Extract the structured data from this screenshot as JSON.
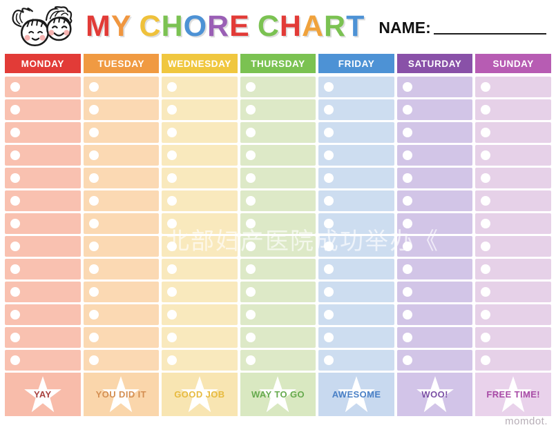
{
  "header": {
    "title_letters": [
      {
        "ch": "M",
        "color": "#e23b37"
      },
      {
        "ch": "Y",
        "color": "#f0963f"
      },
      {
        "ch": " "
      },
      {
        "ch": "C",
        "color": "#efc13b"
      },
      {
        "ch": "H",
        "color": "#7bc252"
      },
      {
        "ch": "O",
        "color": "#4d92d5"
      },
      {
        "ch": "R",
        "color": "#9a5fb5"
      },
      {
        "ch": "E",
        "color": "#e23b37"
      },
      {
        "ch": " "
      },
      {
        "ch": "C",
        "color": "#7bc252"
      },
      {
        "ch": "H",
        "color": "#e23b37"
      },
      {
        "ch": "A",
        "color": "#f0a23c"
      },
      {
        "ch": "R",
        "color": "#7bc252"
      },
      {
        "ch": "T",
        "color": "#4d92d5"
      }
    ],
    "title_text": "MY CHORE CHART",
    "name_label": "NAME:",
    "name_value": ""
  },
  "chart": {
    "rows": 13,
    "columns": [
      {
        "day": "MONDAY",
        "header_color": "#e23b37",
        "cell_color": "#f9c1b0",
        "reward_bg": "#f8bcaa",
        "reward_label": "YAY",
        "reward_text": "#a8423f"
      },
      {
        "day": "TUESDAY",
        "header_color": "#f09a42",
        "cell_color": "#fbd9b3",
        "reward_bg": "#fad6ab",
        "reward_label": "YOU DID IT",
        "reward_text": "#d48f52"
      },
      {
        "day": "WEDNESDAY",
        "header_color": "#f0c73f",
        "cell_color": "#f9e9bd",
        "reward_bg": "#f8e5b2",
        "reward_label": "GOOD JOB",
        "reward_text": "#e7ba3e"
      },
      {
        "day": "THURSDAY",
        "header_color": "#7bc252",
        "cell_color": "#dde9c7",
        "reward_bg": "#d9e8c1",
        "reward_label": "WAY TO GO",
        "reward_text": "#66aa4e"
      },
      {
        "day": "FRIDAY",
        "header_color": "#4d92d5",
        "cell_color": "#cdddf0",
        "reward_bg": "#c8d9ef",
        "reward_label": "AWESOME",
        "reward_text": "#4a80c6"
      },
      {
        "day": "SATURDAY",
        "header_color": "#8951a8",
        "cell_color": "#d2c5e7",
        "reward_bg": "#d2c4e8",
        "reward_label": "WOO!",
        "reward_text": "#7b50a5"
      },
      {
        "day": "SUNDAY",
        "header_color": "#b75cb3",
        "cell_color": "#e6d1e8",
        "reward_bg": "#e9d2eb",
        "reward_label": "FREE TIME!",
        "reward_text": "#a84ba6"
      }
    ]
  },
  "watermark": {
    "text": "北部妇产医院成功举办《"
  },
  "footer": {
    "brand": "momdot."
  }
}
